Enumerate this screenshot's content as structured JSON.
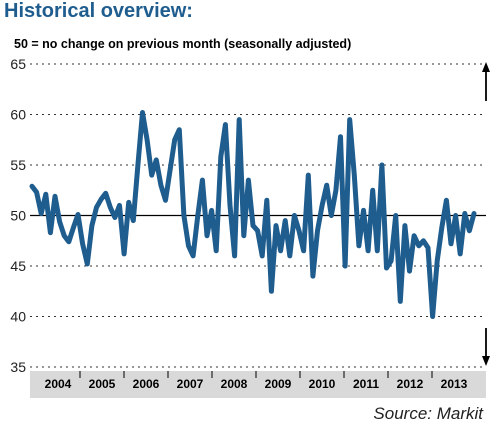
{
  "header": {
    "title": "Historical overview:",
    "subtitle": "50 = no change on previous month (seasonally adjusted)"
  },
  "footer": {
    "source": "Source: Markit"
  },
  "colors": {
    "line": "#1f5d8f",
    "title": "#1f5d8f",
    "axis_band": "#d9d9d9"
  },
  "icons": {
    "up": "arrow-up-icon",
    "down": "arrow-down-icon"
  },
  "chart_data": {
    "type": "line",
    "ylim": [
      35,
      65
    ],
    "yticks": [
      "35",
      "40",
      "45",
      "50",
      "55",
      "60",
      "65"
    ],
    "reference_line": 50,
    "grid": "dotted horizontal",
    "x_period_labels": [
      "2004",
      "2005",
      "2006",
      "2007",
      "2008",
      "2009",
      "2010",
      "2011",
      "2012",
      "2013"
    ],
    "series": [
      {
        "values": [
          52.9,
          52.3,
          50.2,
          52.1,
          48.3,
          51.9,
          49.4,
          48.0,
          47.4,
          48.8,
          50.1,
          47.2,
          45.2,
          49.0,
          50.8,
          51.6,
          52.2,
          50.8,
          49.8,
          51.0,
          46.2,
          51.3,
          49.5,
          55.0,
          60.2,
          57.5,
          54.0,
          55.5,
          53.0,
          51.5,
          54.5,
          57.5,
          58.5,
          50.0,
          47.0,
          46.0,
          50.0,
          53.5,
          48.0,
          50.5,
          46.5,
          55.8,
          59.0,
          51.0,
          46.0,
          59.5,
          48.0,
          53.5,
          49.0,
          48.5,
          46.0,
          51.5,
          42.5,
          49.0,
          46.5,
          49.5,
          46.0,
          50.0,
          48.5,
          46.5,
          54.0,
          44.0,
          48.5,
          51.0,
          53.0,
          50.0,
          52.5,
          57.8,
          45.0,
          59.5,
          54.0,
          47.0,
          50.5,
          46.5,
          52.5,
          46.5,
          55.0,
          44.8,
          45.5,
          50.0,
          41.5,
          49.0,
          44.5,
          48.0,
          47.0,
          47.5,
          46.8,
          40.0,
          45.5,
          48.8,
          51.5,
          47.2,
          50.0,
          46.2,
          50.2,
          48.5,
          50.2
        ]
      }
    ]
  }
}
